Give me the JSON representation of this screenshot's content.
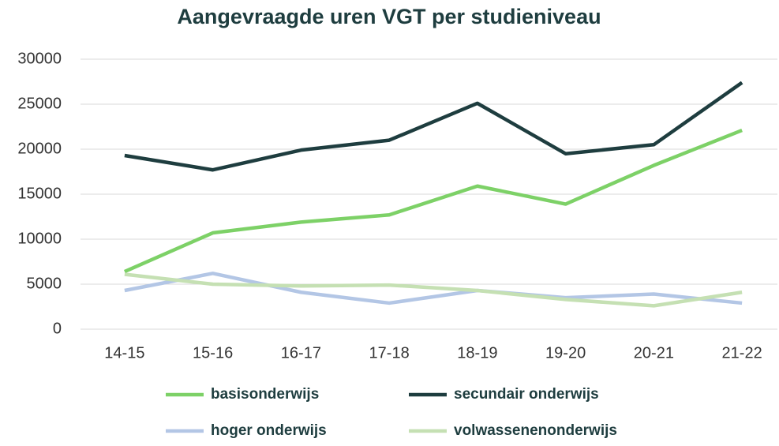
{
  "chart_data": {
    "type": "line",
    "title": "Aangevraagde uren VGT per studieniveau",
    "categories": [
      "14-15",
      "15-16",
      "16-17",
      "17-18",
      "18-19",
      "19-20",
      "20-21",
      "21-22"
    ],
    "series": [
      {
        "name": "basisonderwijs",
        "color": "#7dd167",
        "values": [
          6400,
          10700,
          11900,
          12700,
          15900,
          13900,
          18200,
          22100
        ]
      },
      {
        "name": "secundair onderwijs",
        "color": "#1e3d3f",
        "values": [
          19300,
          17700,
          19900,
          21000,
          25100,
          19500,
          20500,
          27400
        ]
      },
      {
        "name": "hoger onderwijs",
        "color": "#b3c6e5",
        "values": [
          4300,
          6200,
          4100,
          2900,
          4300,
          3500,
          3900,
          2900
        ]
      },
      {
        "name": "volwassenenonderwijs",
        "color": "#c5e0b3",
        "values": [
          6100,
          5000,
          4800,
          4900,
          4300,
          3300,
          2600,
          4100
        ]
      }
    ],
    "ylim": [
      0,
      30000
    ],
    "yticks": [
      0,
      5000,
      10000,
      15000,
      20000,
      25000,
      30000
    ],
    "grid": true,
    "legend": "bottom"
  }
}
